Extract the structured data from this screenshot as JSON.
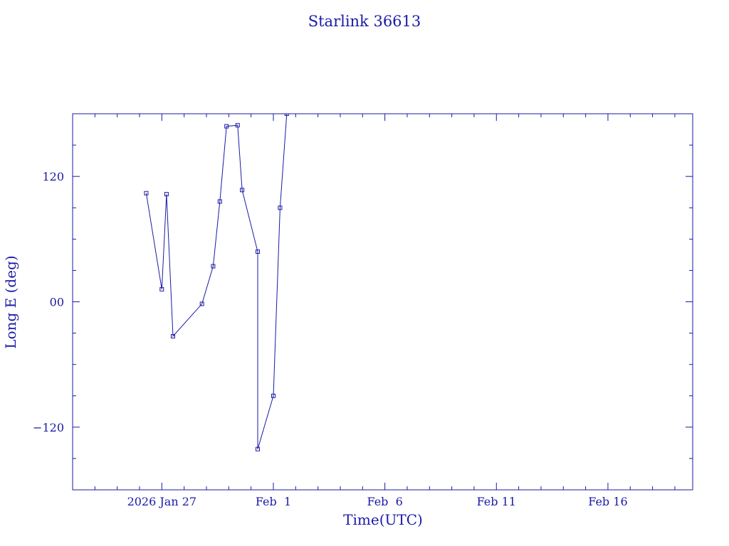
{
  "chart_data": {
    "type": "scatter",
    "title": "Starlink 36613",
    "xlabel": "Time(UTC)",
    "ylabel": "Long E (deg)",
    "x_unit": "days (2026)",
    "x_ticks": [
      {
        "date": "2026-01-27",
        "label": "2026 Jan 27"
      },
      {
        "date": "2026-02-01",
        "label": "Feb  1"
      },
      {
        "date": "2026-02-06",
        "label": "Feb  6"
      },
      {
        "date": "2026-02-11",
        "label": "Feb 11"
      },
      {
        "date": "2026-02-16",
        "label": "Feb 16"
      }
    ],
    "y_ticks": [
      {
        "value": 120,
        "label": "120"
      },
      {
        "value": 0,
        "label": "00"
      },
      {
        "value": -120,
        "label": "−120"
      }
    ],
    "xlim": [
      "2026-01-23T00:00",
      "2026-02-19T19:12"
    ],
    "ylim": [
      -180,
      180
    ],
    "grid": false,
    "line_color": "#1a1aa6",
    "series": [
      {
        "points": [
          [
            "2026-01-26T07:12",
            104
          ],
          [
            "2026-01-27T00:00",
            12
          ],
          [
            "2026-01-27T05:00",
            103
          ],
          [
            "2026-01-27T12:00",
            -33
          ],
          [
            "2026-01-28T19:12",
            -2
          ],
          [
            "2026-01-29T07:12",
            34
          ],
          [
            "2026-01-29T14:24",
            96
          ],
          [
            "2026-01-29T21:36",
            168
          ],
          [
            "2026-01-30T09:36",
            169
          ],
          [
            "2026-01-30T14:24",
            107
          ],
          [
            "2026-01-31T07:12",
            48
          ],
          [
            "2026-01-31T07:12",
            -141
          ],
          [
            "2026-02-01T00:00",
            -90
          ],
          [
            "2026-02-01T07:12",
            90
          ],
          [
            "2026-02-01T14:24",
            180
          ]
        ]
      }
    ]
  }
}
